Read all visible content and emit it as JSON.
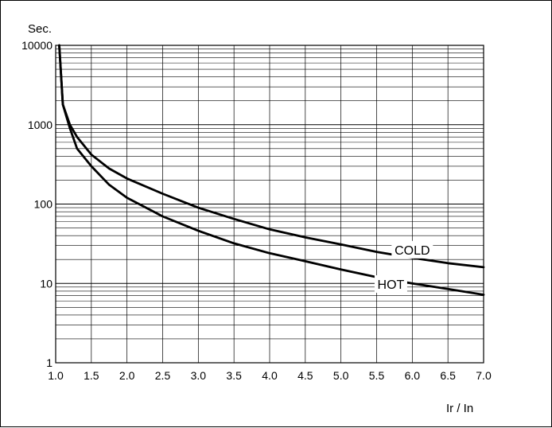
{
  "chart_data": {
    "type": "line",
    "title": "",
    "xlabel": "Ir / In",
    "ylabel": "Sec.",
    "x_scale": "linear",
    "y_scale": "log",
    "xlim": [
      1.0,
      7.0
    ],
    "ylim": [
      1,
      10000
    ],
    "grid": true,
    "x_ticks": [
      "1.0",
      "1.5",
      "2.0",
      "2.5",
      "3.0",
      "3.5",
      "4.0",
      "4.5",
      "5.0",
      "5.5",
      "6.0",
      "6.5",
      "7.0"
    ],
    "y_ticks": [
      "1",
      "10",
      "100",
      "1000",
      "10000"
    ],
    "series": [
      {
        "name": "COLD",
        "color": "#000000",
        "points": [
          [
            1.05,
            10000
          ],
          [
            1.1,
            1800
          ],
          [
            1.2,
            1000
          ],
          [
            1.3,
            700
          ],
          [
            1.5,
            420
          ],
          [
            1.75,
            280
          ],
          [
            2.0,
            210
          ],
          [
            2.5,
            135
          ],
          [
            3.0,
            90
          ],
          [
            3.5,
            65
          ],
          [
            4.0,
            48
          ],
          [
            4.5,
            38
          ],
          [
            5.0,
            31
          ],
          [
            5.5,
            25
          ],
          [
            6.0,
            21
          ],
          [
            6.5,
            18
          ],
          [
            7.0,
            16
          ]
        ]
      },
      {
        "name": "HOT",
        "color": "#000000",
        "points": [
          [
            1.05,
            10000
          ],
          [
            1.1,
            1800
          ],
          [
            1.2,
            900
          ],
          [
            1.3,
            500
          ],
          [
            1.5,
            300
          ],
          [
            1.75,
            175
          ],
          [
            2.0,
            120
          ],
          [
            2.5,
            70
          ],
          [
            3.0,
            46
          ],
          [
            3.5,
            32
          ],
          [
            4.0,
            24
          ],
          [
            4.5,
            19
          ],
          [
            5.0,
            15
          ],
          [
            5.5,
            12
          ],
          [
            6.0,
            10
          ],
          [
            6.5,
            8.5
          ],
          [
            7.0,
            7.2
          ]
        ]
      }
    ]
  }
}
